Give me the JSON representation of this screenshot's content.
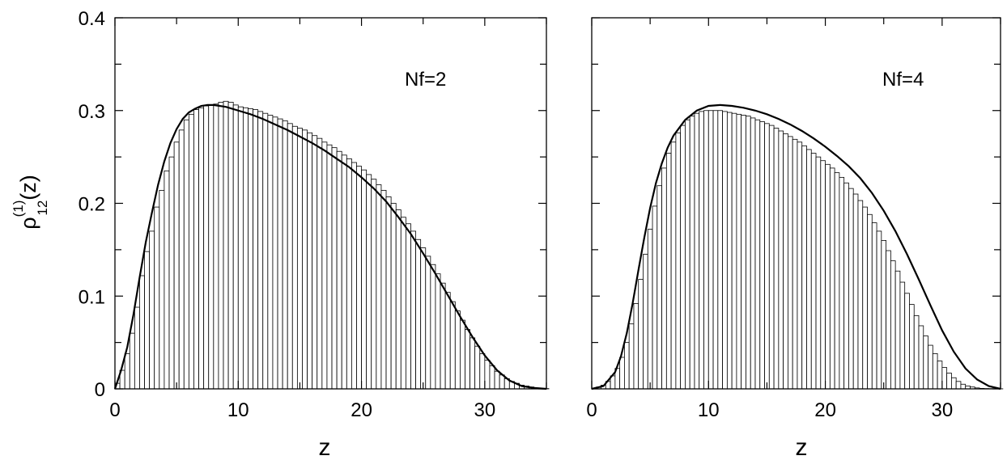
{
  "chart_data": [
    {
      "type": "bar",
      "annotation": "Nf=2",
      "xlabel": "z",
      "ylabel": {
        "main": "ρ",
        "superscript": "(1)",
        "subscript": "12",
        "suffix": "(z)"
      },
      "xlim": [
        0,
        35
      ],
      "ylim": [
        0,
        0.4
      ],
      "xticks": [
        "0",
        "10",
        "20",
        "30"
      ],
      "yticks": [
        "0",
        "0.1",
        "0.2",
        "0.3",
        "0.4"
      ],
      "bin_width": 0.4,
      "bins": {
        "x_start": [
          0,
          0.4,
          0.8,
          1.2,
          1.6,
          2.0,
          2.4,
          2.8,
          3.2,
          3.6,
          4.0,
          4.4,
          4.8,
          5.2,
          5.6,
          6.0,
          6.4,
          6.8,
          7.2,
          7.6,
          8.0,
          8.4,
          8.8,
          9.2,
          9.6,
          10.0,
          10.4,
          10.8,
          11.2,
          11.6,
          12.0,
          12.4,
          12.8,
          13.2,
          13.6,
          14.0,
          14.4,
          14.8,
          15.2,
          15.6,
          16.0,
          16.4,
          16.8,
          17.2,
          17.6,
          18.0,
          18.4,
          18.8,
          19.2,
          19.6,
          20.0,
          20.4,
          20.8,
          21.2,
          21.6,
          22.0,
          22.4,
          22.8,
          23.2,
          23.6,
          24.0,
          24.4,
          24.8,
          25.2,
          25.6,
          26.0,
          26.4,
          26.8,
          27.2,
          27.6,
          28.0,
          28.4,
          28.8,
          29.2,
          29.6,
          30.0,
          30.4,
          30.8,
          31.2,
          31.6,
          32.0,
          32.4,
          32.8,
          33.2,
          33.6,
          34.0,
          34.4,
          34.8
        ],
        "height": [
          0.006,
          0.02,
          0.038,
          0.06,
          0.088,
          0.122,
          0.148,
          0.17,
          0.196,
          0.214,
          0.235,
          0.25,
          0.266,
          0.279,
          0.29,
          0.296,
          0.301,
          0.303,
          0.305,
          0.306,
          0.307,
          0.309,
          0.31,
          0.309,
          0.306,
          0.304,
          0.303,
          0.302,
          0.301,
          0.299,
          0.297,
          0.295,
          0.293,
          0.291,
          0.289,
          0.286,
          0.283,
          0.281,
          0.279,
          0.276,
          0.273,
          0.27,
          0.266,
          0.263,
          0.26,
          0.256,
          0.252,
          0.248,
          0.244,
          0.24,
          0.236,
          0.231,
          0.226,
          0.22,
          0.214,
          0.207,
          0.2,
          0.193,
          0.185,
          0.178,
          0.17,
          0.161,
          0.152,
          0.143,
          0.134,
          0.124,
          0.114,
          0.104,
          0.094,
          0.084,
          0.074,
          0.064,
          0.055,
          0.046,
          0.038,
          0.031,
          0.025,
          0.019,
          0.015,
          0.011,
          0.008,
          0.006,
          0.004,
          0.003,
          0.002,
          0.001,
          0.0005,
          0.0003
        ]
      },
      "curve": {
        "x": [
          0,
          0.5,
          1,
          1.5,
          2,
          2.5,
          3,
          3.5,
          4,
          4.5,
          5,
          5.5,
          6,
          6.5,
          7,
          7.5,
          8,
          9,
          10,
          11,
          12,
          13,
          14,
          15,
          16,
          17,
          18,
          19,
          20,
          21,
          22,
          23,
          24,
          25,
          26,
          27,
          28,
          29,
          30,
          31,
          32,
          33,
          34,
          35
        ],
        "y": [
          0,
          0.02,
          0.045,
          0.08,
          0.12,
          0.158,
          0.19,
          0.22,
          0.245,
          0.265,
          0.28,
          0.291,
          0.298,
          0.302,
          0.305,
          0.306,
          0.306,
          0.304,
          0.3,
          0.296,
          0.291,
          0.285,
          0.279,
          0.272,
          0.265,
          0.257,
          0.248,
          0.239,
          0.228,
          0.216,
          0.202,
          0.185,
          0.167,
          0.146,
          0.124,
          0.101,
          0.078,
          0.056,
          0.036,
          0.02,
          0.009,
          0.003,
          0.001,
          0
        ]
      }
    },
    {
      "type": "bar",
      "annotation": "Nf=4",
      "xlabel": "z",
      "xlim": [
        0,
        35
      ],
      "ylim": [
        0,
        0.4
      ],
      "xticks": [
        "0",
        "10",
        "20",
        "30"
      ],
      "bin_width": 0.4,
      "bins": {
        "x_start": [
          0,
          0.4,
          0.8,
          1.2,
          1.6,
          2.0,
          2.4,
          2.8,
          3.2,
          3.6,
          4.0,
          4.4,
          4.8,
          5.2,
          5.6,
          6.0,
          6.4,
          6.8,
          7.2,
          7.6,
          8.0,
          8.4,
          8.8,
          9.2,
          9.6,
          10.0,
          10.4,
          10.8,
          11.2,
          11.6,
          12.0,
          12.4,
          12.8,
          13.2,
          13.6,
          14.0,
          14.4,
          14.8,
          15.2,
          15.6,
          16.0,
          16.4,
          16.8,
          17.2,
          17.6,
          18.0,
          18.4,
          18.8,
          19.2,
          19.6,
          20.0,
          20.4,
          20.8,
          21.2,
          21.6,
          22.0,
          22.4,
          22.8,
          23.2,
          23.6,
          24.0,
          24.4,
          24.8,
          25.2,
          25.6,
          26.0,
          26.4,
          26.8,
          27.2,
          27.6,
          28.0,
          28.4,
          28.8,
          29.2,
          29.6,
          30.0,
          30.4,
          30.8,
          31.2,
          31.6,
          32.0,
          32.4,
          32.8,
          33.2,
          33.6,
          34.0,
          34.4,
          34.8
        ],
        "height": [
          0.0005,
          0.002,
          0.004,
          0.008,
          0.014,
          0.022,
          0.034,
          0.05,
          0.07,
          0.092,
          0.118,
          0.145,
          0.172,
          0.197,
          0.219,
          0.238,
          0.254,
          0.266,
          0.276,
          0.284,
          0.29,
          0.294,
          0.297,
          0.299,
          0.3,
          0.3,
          0.3,
          0.3,
          0.299,
          0.298,
          0.297,
          0.296,
          0.295,
          0.294,
          0.292,
          0.29,
          0.288,
          0.286,
          0.284,
          0.281,
          0.278,
          0.275,
          0.272,
          0.269,
          0.266,
          0.262,
          0.258,
          0.254,
          0.25,
          0.246,
          0.242,
          0.238,
          0.233,
          0.228,
          0.222,
          0.216,
          0.21,
          0.203,
          0.196,
          0.188,
          0.179,
          0.17,
          0.16,
          0.149,
          0.138,
          0.127,
          0.115,
          0.103,
          0.091,
          0.079,
          0.068,
          0.057,
          0.047,
          0.038,
          0.03,
          0.023,
          0.017,
          0.012,
          0.008,
          0.005,
          0.003,
          0.002,
          0.001,
          0.0005,
          0.0003,
          0.0002,
          0.0001,
          0.0001
        ]
      },
      "curve": {
        "x": [
          0,
          1,
          2,
          2.5,
          3,
          3.5,
          4,
          4.5,
          5,
          5.5,
          6,
          6.5,
          7,
          8,
          9,
          10,
          11,
          12,
          13,
          14,
          15,
          16,
          17,
          18,
          19,
          20,
          21,
          22,
          23,
          24,
          25,
          26,
          27,
          28,
          29,
          30,
          31,
          32,
          33,
          34,
          35
        ],
        "y": [
          0,
          0.003,
          0.018,
          0.035,
          0.06,
          0.092,
          0.128,
          0.163,
          0.195,
          0.222,
          0.243,
          0.26,
          0.273,
          0.29,
          0.3,
          0.305,
          0.306,
          0.305,
          0.303,
          0.3,
          0.296,
          0.291,
          0.285,
          0.278,
          0.27,
          0.261,
          0.251,
          0.24,
          0.227,
          0.211,
          0.192,
          0.17,
          0.145,
          0.118,
          0.09,
          0.063,
          0.04,
          0.022,
          0.01,
          0.003,
          0
        ]
      }
    }
  ]
}
